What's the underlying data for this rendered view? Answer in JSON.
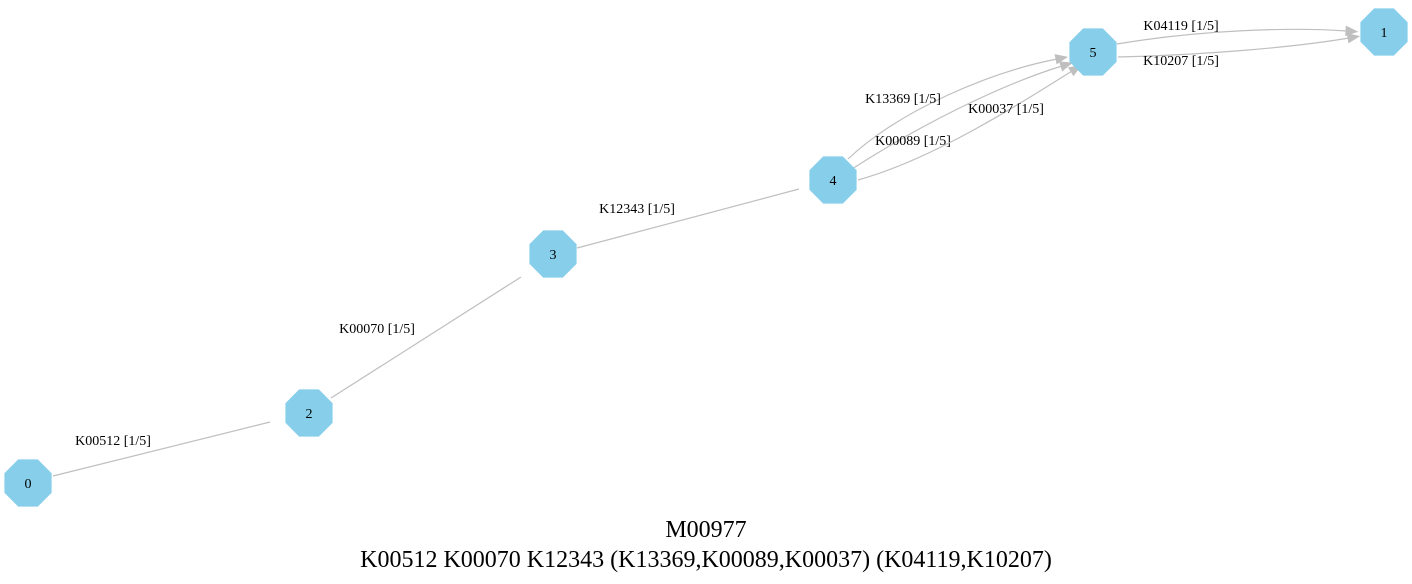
{
  "colors": {
    "node_fill": "#87ceeb",
    "edge": "#bfbfbf",
    "text": "#000000",
    "background": "#ffffff"
  },
  "nodes": [
    {
      "id": "0",
      "label": "0"
    },
    {
      "id": "1",
      "label": "1"
    },
    {
      "id": "2",
      "label": "2"
    },
    {
      "id": "3",
      "label": "3"
    },
    {
      "id": "4",
      "label": "4"
    },
    {
      "id": "5",
      "label": "5"
    }
  ],
  "edges": [
    {
      "from": "0",
      "to": "2",
      "label": "K00512 [1/5]"
    },
    {
      "from": "2",
      "to": "3",
      "label": "K00070 [1/5]"
    },
    {
      "from": "3",
      "to": "4",
      "label": "K12343 [1/5]"
    },
    {
      "from": "4",
      "to": "5",
      "label": "K13369 [1/5]"
    },
    {
      "from": "4",
      "to": "5",
      "label": "K00089 [1/5]"
    },
    {
      "from": "4",
      "to": "5",
      "label": "K00037 [1/5]"
    },
    {
      "from": "5",
      "to": "1",
      "label": "K04119 [1/5]"
    },
    {
      "from": "5",
      "to": "1",
      "label": "K10207 [1/5]"
    }
  ],
  "module_id": "M00977",
  "definition": "K00512 K00070 K12343 (K13369,K00089,K00037) (K04119,K10207)"
}
